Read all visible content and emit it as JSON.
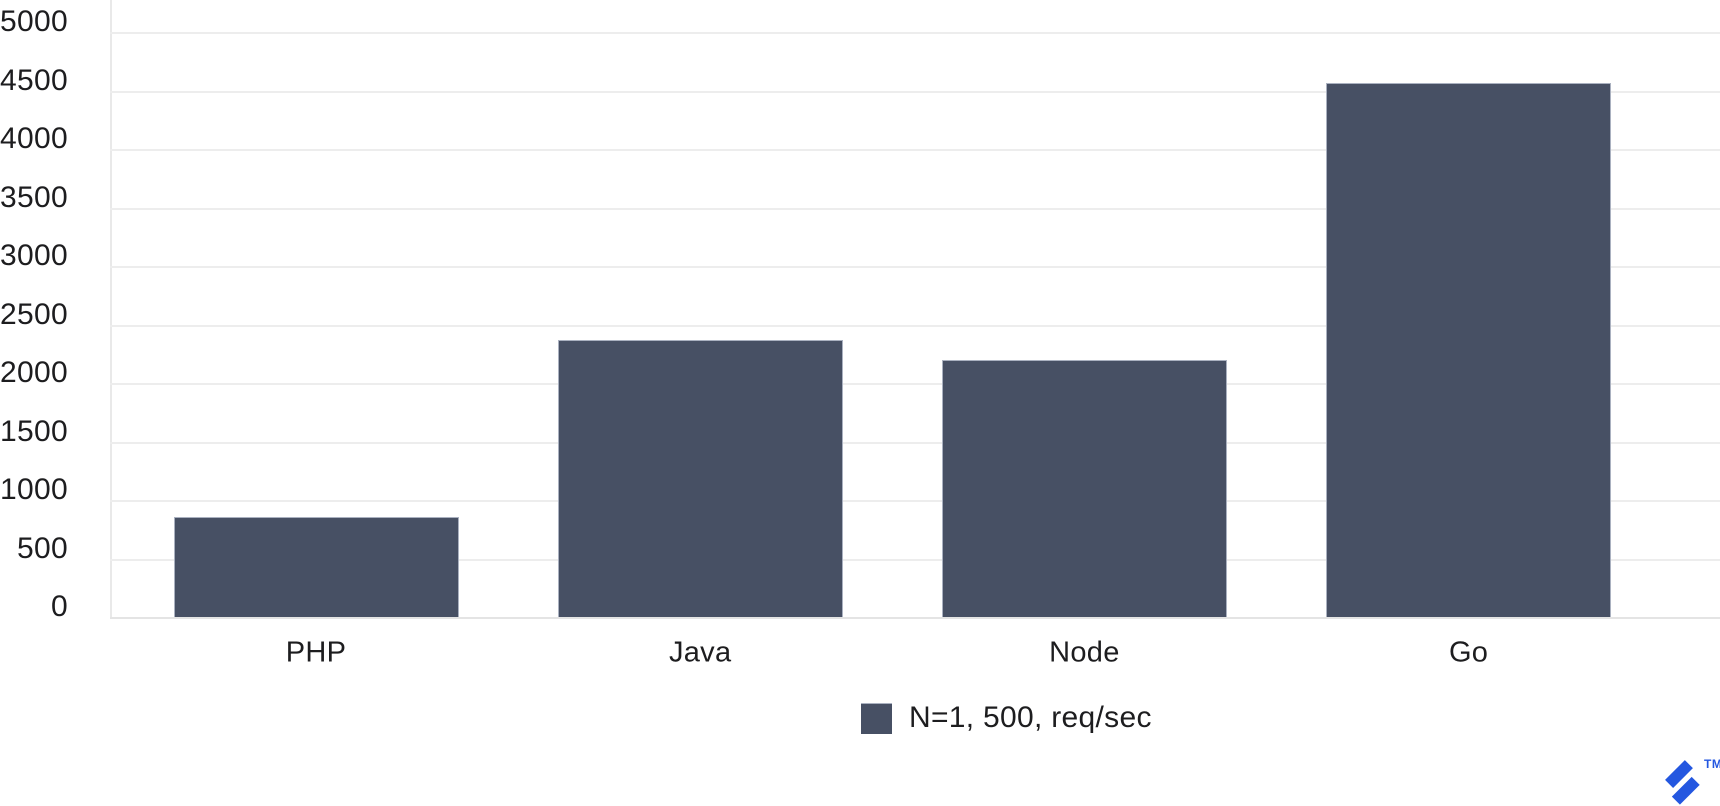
{
  "chart_data": {
    "type": "bar",
    "categories": [
      "PHP",
      "Java",
      "Node",
      "Go"
    ],
    "values": [
      855,
      2370,
      2200,
      4565
    ],
    "series": [
      {
        "name": "N=1, 500, req/sec",
        "values": [
          855,
          2370,
          2200,
          4565
        ]
      }
    ],
    "title": "",
    "xlabel": "",
    "ylabel": "",
    "ylim": [
      0,
      5000
    ],
    "ytick_step": 500,
    "yticks": [
      0,
      500,
      1000,
      1500,
      2000,
      2500,
      3000,
      3500,
      4000,
      4500,
      5000
    ],
    "grid": true,
    "legend_position": "bottom",
    "bar_color": "#475064",
    "gridline_color": "#ededed",
    "label_color": "#1d1d1f"
  },
  "legend": {
    "label": "N=1, 500, req/sec",
    "swatch_color": "#475064"
  },
  "branding": {
    "logo": "toptal-logomark",
    "logo_color": "#2457e0",
    "trademark": "TM"
  }
}
